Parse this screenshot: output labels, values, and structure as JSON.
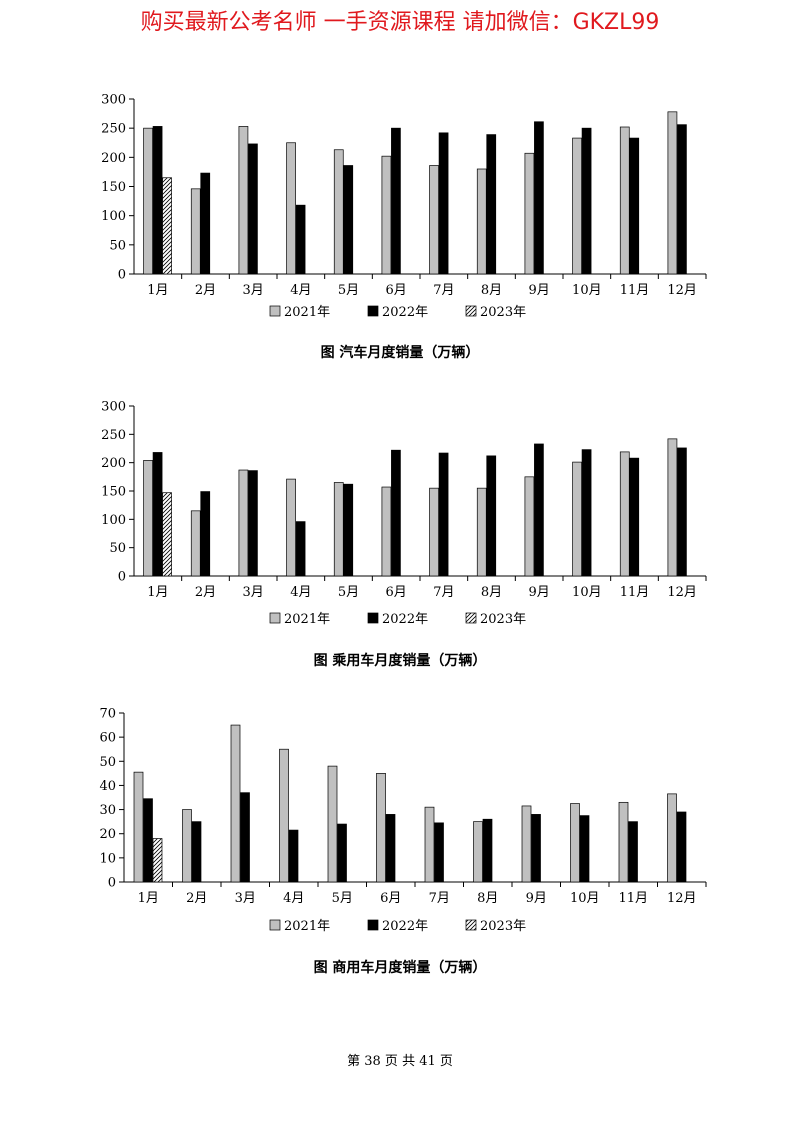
{
  "banner": "购买最新公考名师  一手资源课程  请加微信：GKZL99",
  "footer": "第 38 页   共 41 页",
  "colors": {
    "banner": "#e0191e",
    "s2021": "#c0c0c0",
    "s2022": "#000000",
    "s2023": "hatched"
  },
  "chart_data": [
    {
      "type": "bar",
      "title": "图    汽车月度销量（万辆）",
      "categories": [
        "1月",
        "2月",
        "3月",
        "4月",
        "5月",
        "6月",
        "7月",
        "8月",
        "9月",
        "10月",
        "11月",
        "12月"
      ],
      "ylim": [
        0,
        300
      ],
      "yticks": [
        0,
        50,
        100,
        150,
        200,
        250,
        300
      ],
      "legend": "bottom",
      "series": [
        {
          "name": "2021年",
          "values": [
            250,
            146,
            253,
            225,
            213,
            202,
            186,
            180,
            207,
            233,
            252,
            278
          ]
        },
        {
          "name": "2022年",
          "values": [
            253,
            173,
            223,
            118,
            186,
            250,
            242,
            239,
            261,
            250,
            233,
            256
          ]
        },
        {
          "name": "2023年",
          "values": [
            165,
            null,
            null,
            null,
            null,
            null,
            null,
            null,
            null,
            null,
            null,
            null
          ]
        }
      ]
    },
    {
      "type": "bar",
      "title": "图    乘用车月度销量（万辆）",
      "categories": [
        "1月",
        "2月",
        "3月",
        "4月",
        "5月",
        "6月",
        "7月",
        "8月",
        "9月",
        "10月",
        "11月",
        "12月"
      ],
      "ylim": [
        0,
        300
      ],
      "yticks": [
        0,
        50,
        100,
        150,
        200,
        250,
        300
      ],
      "legend": "bottom",
      "series": [
        {
          "name": "2021年",
          "values": [
            204,
            115,
            187,
            171,
            165,
            157,
            155,
            155,
            175,
            201,
            219,
            242
          ]
        },
        {
          "name": "2022年",
          "values": [
            218,
            149,
            186,
            96,
            162,
            222,
            217,
            212,
            233,
            223,
            208,
            226
          ]
        },
        {
          "name": "2023年",
          "values": [
            147,
            null,
            null,
            null,
            null,
            null,
            null,
            null,
            null,
            null,
            null,
            null
          ]
        }
      ]
    },
    {
      "type": "bar",
      "title": "图    商用车月度销量（万辆）",
      "categories": [
        "1月",
        "2月",
        "3月",
        "4月",
        "5月",
        "6月",
        "7月",
        "8月",
        "9月",
        "10月",
        "11月",
        "12月"
      ],
      "ylim": [
        0,
        70
      ],
      "yticks": [
        0,
        10,
        20,
        30,
        40,
        50,
        60,
        70
      ],
      "legend": "bottom",
      "series": [
        {
          "name": "2021年",
          "values": [
            45.5,
            30,
            65,
            55,
            48,
            45,
            31,
            25,
            31.5,
            32.5,
            33,
            36.5
          ]
        },
        {
          "name": "2022年",
          "values": [
            34.5,
            25,
            37,
            21.5,
            24,
            28,
            24.5,
            26,
            28,
            27.5,
            25,
            29
          ]
        },
        {
          "name": "2023年",
          "values": [
            18,
            null,
            null,
            null,
            null,
            null,
            null,
            null,
            null,
            null,
            null,
            null
          ]
        }
      ]
    }
  ]
}
